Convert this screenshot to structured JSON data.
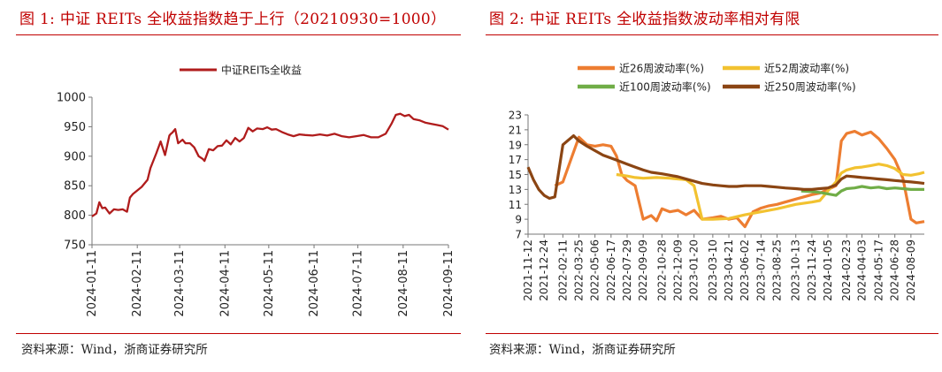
{
  "left": {
    "title": "图 1:   中证 REITs 全收益指数趋于上行（20210930=1000）",
    "source": "资料来源：Wind，浙商证券研究所"
  },
  "right": {
    "title": "图 2:   中证 REITs 全收益指数波动率相对有限",
    "source": "资料来源：Wind，浙商证券研究所"
  },
  "chart_data": [
    {
      "type": "line",
      "title": "",
      "legend": "top-center",
      "ylim": [
        750,
        1000
      ],
      "yticks": [
        "750",
        "800",
        "850",
        "900",
        "950",
        "1000"
      ],
      "xticks": [
        "2024-01-11",
        "2024-02-11",
        "2024-03-11",
        "2024-04-11",
        "2024-05-11",
        "2024-06-11",
        "2024-07-11",
        "2024-08-11",
        "2024-09-11"
      ],
      "xrange": [
        "2024-01-11",
        "2024-09-11"
      ],
      "grid": false,
      "series": [
        {
          "name": "中证REITs全收益",
          "color": "#b01c1c",
          "x": [
            "2024-01-11",
            "2024-01-14",
            "2024-01-16",
            "2024-01-18",
            "2024-01-20",
            "2024-01-23",
            "2024-01-26",
            "2024-01-29",
            "2024-02-01",
            "2024-02-04",
            "2024-02-06",
            "2024-02-08",
            "2024-02-14",
            "2024-02-18",
            "2024-02-20",
            "2024-02-24",
            "2024-02-27",
            "2024-03-01",
            "2024-03-04",
            "2024-03-05",
            "2024-03-06",
            "2024-03-08",
            "2024-03-10",
            "2024-03-13",
            "2024-03-15",
            "2024-03-18",
            "2024-03-21",
            "2024-03-24",
            "2024-03-27",
            "2024-03-28",
            "2024-03-31",
            "2024-04-03",
            "2024-04-06",
            "2024-04-09",
            "2024-04-12",
            "2024-04-15",
            "2024-04-18",
            "2024-04-21",
            "2024-04-24",
            "2024-04-27",
            "2024-04-30",
            "2024-05-03",
            "2024-05-07",
            "2024-05-10",
            "2024-05-13",
            "2024-05-16",
            "2024-05-20",
            "2024-05-24",
            "2024-05-28",
            "2024-06-01",
            "2024-06-05",
            "2024-06-10",
            "2024-06-15",
            "2024-06-20",
            "2024-06-25",
            "2024-06-30",
            "2024-07-05",
            "2024-07-10",
            "2024-07-15",
            "2024-07-20",
            "2024-07-25",
            "2024-07-30",
            "2024-08-03",
            "2024-08-06",
            "2024-08-09",
            "2024-08-12",
            "2024-08-15",
            "2024-08-18",
            "2024-08-22",
            "2024-08-26",
            "2024-08-30",
            "2024-09-03",
            "2024-09-07",
            "2024-09-11"
          ],
          "values": [
            798,
            803,
            822,
            812,
            813,
            803,
            810,
            809,
            810,
            806,
            830,
            836,
            848,
            860,
            880,
            905,
            925,
            902,
            935,
            938,
            940,
            946,
            922,
            928,
            922,
            922,
            915,
            900,
            895,
            892,
            912,
            910,
            917,
            918,
            927,
            920,
            931,
            925,
            931,
            948,
            942,
            947,
            946,
            949,
            945,
            946,
            941,
            937,
            934,
            937,
            936,
            935,
            937,
            935,
            938,
            934,
            932,
            934,
            936,
            932,
            932,
            938,
            955,
            970,
            972,
            968,
            970,
            963,
            961,
            957,
            955,
            953,
            951,
            945
          ]
        }
      ]
    },
    {
      "type": "line",
      "title": "",
      "legend": "top",
      "ylim": [
        7,
        23
      ],
      "yticks": [
        "7",
        "9",
        "11",
        "13",
        "15",
        "17",
        "19",
        "21",
        "23"
      ],
      "xticks": [
        "2021-11-12",
        "2021-12-24",
        "2022-02-11",
        "2022-03-25",
        "2022-05-06",
        "2022-06-17",
        "2022-07-29",
        "2022-09-09",
        "2022-10-28",
        "2022-12-09",
        "2023-01-20",
        "2023-03-10",
        "2023-04-21",
        "2023-06-02",
        "2023-07-14",
        "2023-08-25",
        "2023-10-13",
        "2023-11-24",
        "2024-01-05",
        "2024-02-23",
        "2024-04-03",
        "2024-05-17",
        "2024-06-28",
        "2024-08-09"
      ],
      "xrange": [
        "2021-11-12",
        "2024-09-13"
      ],
      "grid": false,
      "series": [
        {
          "name": "近26周波动率(%)",
          "color": "#ed7d31",
          "x": [
            "2022-01-21",
            "2022-02-11",
            "2022-03-04",
            "2022-03-25",
            "2022-04-15",
            "2022-05-06",
            "2022-05-27",
            "2022-06-17",
            "2022-07-01",
            "2022-07-15",
            "2022-07-29",
            "2022-08-19",
            "2022-09-09",
            "2022-09-30",
            "2022-10-14",
            "2022-10-28",
            "2022-11-18",
            "2022-12-09",
            "2022-12-30",
            "2023-01-20",
            "2023-02-10",
            "2023-03-10",
            "2023-03-31",
            "2023-04-21",
            "2023-05-12",
            "2023-06-02",
            "2023-06-23",
            "2023-07-14",
            "2023-08-04",
            "2023-08-25",
            "2023-09-15",
            "2023-10-13",
            "2023-11-03",
            "2023-11-24",
            "2023-12-15",
            "2024-01-05",
            "2024-01-26",
            "2024-02-09",
            "2024-02-23",
            "2024-03-15",
            "2024-04-03",
            "2024-04-26",
            "2024-05-17",
            "2024-06-07",
            "2024-06-28",
            "2024-07-19",
            "2024-08-09",
            "2024-08-23",
            "2024-09-13"
          ],
          "values": [
            13.5,
            14.0,
            17.0,
            20.0,
            19.0,
            18.8,
            19.0,
            18.8,
            17.5,
            15.0,
            14.2,
            13.5,
            9.0,
            9.5,
            8.8,
            10.4,
            10.0,
            10.2,
            9.6,
            10.2,
            9.0,
            9.2,
            9.4,
            9.0,
            9.2,
            8.0,
            10.0,
            10.5,
            10.8,
            11.0,
            11.3,
            11.7,
            12.0,
            12.3,
            12.5,
            13.0,
            13.5,
            19.5,
            20.5,
            20.8,
            20.3,
            20.7,
            19.8,
            18.5,
            17.0,
            14.5,
            9.0,
            8.5,
            8.7
          ]
        },
        {
          "name": "近52周波动率(%)",
          "color": "#f2c230",
          "x": [
            "2022-07-01",
            "2022-07-29",
            "2022-08-19",
            "2022-09-09",
            "2022-10-14",
            "2022-11-18",
            "2022-12-30",
            "2023-01-20",
            "2023-02-10",
            "2023-03-10",
            "2023-04-21",
            "2023-06-02",
            "2023-07-14",
            "2023-08-25",
            "2023-10-13",
            "2023-11-24",
            "2023-12-15",
            "2024-01-05",
            "2024-01-26",
            "2024-02-09",
            "2024-02-23",
            "2024-03-15",
            "2024-04-03",
            "2024-04-26",
            "2024-05-17",
            "2024-06-07",
            "2024-06-28",
            "2024-07-19",
            "2024-08-09",
            "2024-08-30",
            "2024-09-13"
          ],
          "values": [
            15.0,
            14.8,
            14.6,
            14.5,
            14.6,
            14.5,
            14.3,
            13.5,
            9.0,
            9.0,
            9.1,
            9.6,
            10.0,
            10.4,
            11.0,
            11.3,
            11.5,
            12.8,
            14.0,
            15.2,
            15.6,
            15.9,
            16.0,
            16.2,
            16.4,
            16.2,
            15.8,
            15.0,
            14.9,
            15.1,
            15.3
          ]
        },
        {
          "name": "近100周波动率(%)",
          "color": "#70ad47",
          "x": [
            "2023-10-27",
            "2023-11-24",
            "2023-12-15",
            "2024-01-05",
            "2024-01-26",
            "2024-02-09",
            "2024-02-23",
            "2024-03-15",
            "2024-04-03",
            "2024-04-26",
            "2024-05-17",
            "2024-06-07",
            "2024-06-28",
            "2024-07-19",
            "2024-08-09",
            "2024-08-30",
            "2024-09-13"
          ],
          "values": [
            12.8,
            12.7,
            12.6,
            12.4,
            12.2,
            12.8,
            13.1,
            13.2,
            13.4,
            13.2,
            13.3,
            13.1,
            13.2,
            13.1,
            13.0,
            13.0,
            13.0
          ]
        },
        {
          "name": "近250周波动率(%)",
          "color": "#8b4513",
          "x": [
            "2021-11-12",
            "2021-11-26",
            "2021-12-10",
            "2021-12-24",
            "2022-01-07",
            "2022-01-21",
            "2022-02-11",
            "2022-02-25",
            "2022-03-11",
            "2022-03-25",
            "2022-04-15",
            "2022-05-06",
            "2022-05-27",
            "2022-06-17",
            "2022-07-08",
            "2022-07-29",
            "2022-08-19",
            "2022-09-09",
            "2022-09-30",
            "2022-10-28",
            "2022-11-18",
            "2022-12-09",
            "2022-12-30",
            "2023-01-20",
            "2023-02-10",
            "2023-03-10",
            "2023-03-31",
            "2023-04-21",
            "2023-05-12",
            "2023-06-02",
            "2023-06-23",
            "2023-07-14",
            "2023-08-04",
            "2023-08-25",
            "2023-09-15",
            "2023-10-13",
            "2023-11-03",
            "2023-11-24",
            "2023-12-15",
            "2024-01-05",
            "2024-01-26",
            "2024-02-09",
            "2024-02-23",
            "2024-03-15",
            "2024-04-03",
            "2024-04-26",
            "2024-05-17",
            "2024-06-07",
            "2024-06-28",
            "2024-07-19",
            "2024-08-09",
            "2024-08-30",
            "2024-09-13"
          ],
          "values": [
            16.0,
            14.3,
            13.0,
            12.2,
            11.8,
            12.0,
            19.0,
            19.6,
            20.2,
            19.5,
            18.8,
            18.2,
            17.6,
            17.2,
            16.8,
            16.4,
            16.0,
            15.6,
            15.3,
            15.1,
            14.9,
            14.7,
            14.4,
            14.1,
            13.8,
            13.6,
            13.5,
            13.4,
            13.4,
            13.5,
            13.5,
            13.5,
            13.4,
            13.3,
            13.2,
            13.1,
            13.0,
            13.0,
            13.1,
            13.2,
            13.6,
            14.4,
            14.8,
            14.7,
            14.6,
            14.5,
            14.4,
            14.3,
            14.2,
            14.1,
            14.0,
            13.9,
            13.8
          ]
        }
      ]
    }
  ]
}
